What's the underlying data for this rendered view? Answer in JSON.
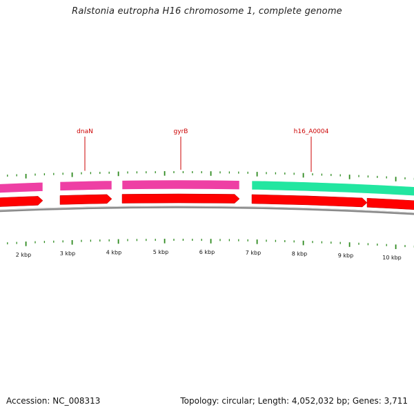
{
  "title": "Ralstonia eutropha H16 chromosome 1, complete genome",
  "footer": {
    "accession": "Accession: NC_008313",
    "summary": "Topology: circular; Length: 4,052,032 bp; Genes: 3,711"
  },
  "colors": {
    "cds_forward": "#ff0000",
    "feature_pink": "#ee3fa4",
    "feature_green": "#22e6a0",
    "tick": "#2d8a1e",
    "backbone": "#8a8a8a",
    "label": "#cc0000"
  },
  "genes": [
    {
      "name": "dnaN"
    },
    {
      "name": "gyrB"
    },
    {
      "name": "h16_A0004"
    }
  ],
  "kbp_labels": [
    "2 kbp",
    "3 kbp",
    "4 kbp",
    "5 kbp",
    "6 kbp",
    "7 kbp",
    "8 kbp",
    "9 kbp",
    "10 kbp"
  ]
}
